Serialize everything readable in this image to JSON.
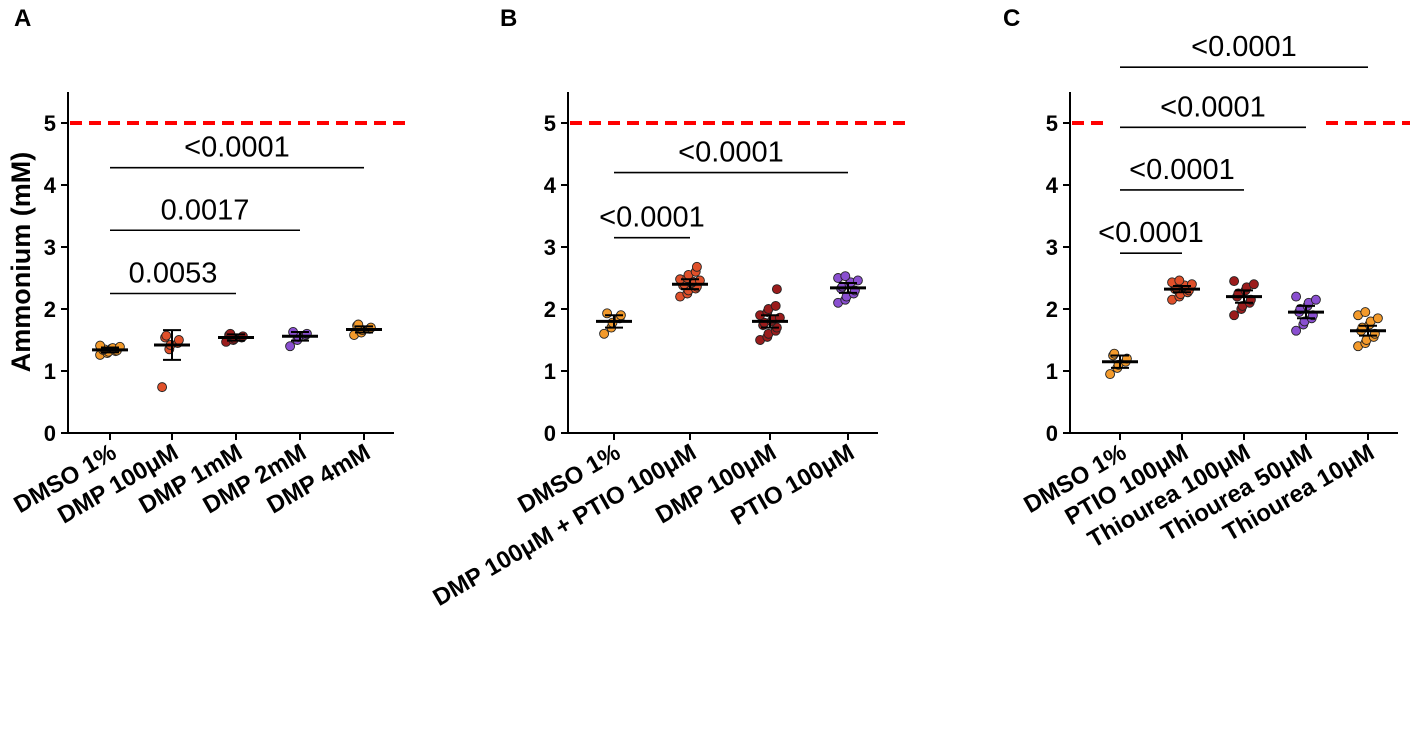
{
  "figure_labels": [
    "A",
    "B",
    "C"
  ],
  "colors": {
    "axis": "#000000",
    "reference_line": "#ff0000",
    "group_colors": {
      "orange": "#f39a2b",
      "red_orange": "#e0502a",
      "dark_red": "#9b1c1c",
      "purple": "#8a4fd0"
    }
  },
  "chart_data": [
    {
      "panel": "A",
      "type": "scatter",
      "ylabel": "Ammonium (mM)",
      "xlabel": "",
      "ylim": [
        0,
        5.5
      ],
      "yticks": [
        "0",
        "1",
        "2",
        "3",
        "4",
        "5"
      ],
      "reference_line": 5,
      "categories": [
        "DMSO 1%",
        "DMP 100μM",
        "DMP 1mM",
        "DMP 2mM",
        "DMP 4mM"
      ],
      "series": [
        {
          "name": "DMSO 1%",
          "color": "orange",
          "mean": 1.34,
          "error": 0.04,
          "points": [
            1.26,
            1.29,
            1.31,
            1.32,
            1.33,
            1.34,
            1.35,
            1.36,
            1.37,
            1.39,
            1.41
          ]
        },
        {
          "name": "DMP 100μM",
          "color": "red_orange",
          "mean": 1.42,
          "error": 0.24,
          "points": [
            0.74,
            1.35,
            1.42,
            1.45,
            1.5,
            1.54,
            1.57
          ]
        },
        {
          "name": "DMP 1mM",
          "color": "dark_red",
          "mean": 1.54,
          "error": 0.05,
          "points": [
            1.47,
            1.5,
            1.52,
            1.54,
            1.56,
            1.58,
            1.6
          ]
        },
        {
          "name": "DMP 2mM",
          "color": "purple",
          "mean": 1.56,
          "error": 0.07,
          "points": [
            1.4,
            1.5,
            1.55,
            1.58,
            1.6,
            1.63
          ]
        },
        {
          "name": "DMP 4mM",
          "color": "orange",
          "mean": 1.67,
          "error": 0.05,
          "points": [
            1.58,
            1.62,
            1.66,
            1.68,
            1.7,
            1.73,
            1.75
          ]
        }
      ],
      "comparisons": [
        {
          "from": 0,
          "to": 4,
          "y": 4.28,
          "label": "<0.0001"
        },
        {
          "from": 0,
          "to": 3,
          "y": 3.27,
          "label": "0.0017"
        },
        {
          "from": 0,
          "to": 2,
          "y": 2.25,
          "label": "0.0053"
        }
      ]
    },
    {
      "panel": "B",
      "type": "scatter",
      "ylabel": "",
      "xlabel": "",
      "ylim": [
        0,
        5.5
      ],
      "yticks": [
        "0",
        "1",
        "2",
        "3",
        "4",
        "5"
      ],
      "reference_line": 5,
      "categories": [
        "DMSO 1%",
        "DMP 100μM + PTIO 100μM",
        "DMP 100μM",
        "PTIO 100μM"
      ],
      "series": [
        {
          "name": "DMSO 1%",
          "color": "orange",
          "mean": 1.8,
          "error": 0.1,
          "points": [
            1.6,
            1.7,
            1.78,
            1.85,
            1.9,
            1.93
          ]
        },
        {
          "name": "DMP 100μM + PTIO 100μM",
          "color": "red_orange",
          "mean": 2.4,
          "error": 0.08,
          "points": [
            2.2,
            2.25,
            2.3,
            2.33,
            2.36,
            2.38,
            2.4,
            2.42,
            2.44,
            2.46,
            2.48,
            2.5,
            2.55,
            2.6,
            2.68
          ]
        },
        {
          "name": "DMP 100μM",
          "color": "dark_red",
          "mean": 1.8,
          "error": 0.1,
          "points": [
            1.5,
            1.55,
            1.6,
            1.65,
            1.7,
            1.74,
            1.78,
            1.8,
            1.83,
            1.86,
            1.9,
            1.95,
            2.0,
            2.05,
            2.32
          ]
        },
        {
          "name": "PTIO 100μM",
          "color": "purple",
          "mean": 2.34,
          "error": 0.08,
          "points": [
            2.1,
            2.15,
            2.2,
            2.25,
            2.3,
            2.33,
            2.36,
            2.4,
            2.43,
            2.46,
            2.5,
            2.53
          ]
        }
      ],
      "comparisons": [
        {
          "from": 0,
          "to": 3,
          "y": 4.2,
          "label": "<0.0001"
        },
        {
          "from": 0,
          "to": 1,
          "y": 3.15,
          "label": "<0.0001"
        }
      ]
    },
    {
      "panel": "C",
      "type": "scatter",
      "ylabel": "",
      "xlabel": "",
      "ylim": [
        0,
        5.5
      ],
      "yticks": [
        "0",
        "1",
        "2",
        "3",
        "4",
        "5"
      ],
      "reference_line": 5,
      "categories": [
        "DMSO 1%",
        "PTIO 100μM",
        "Thiourea 100μM",
        "Thiourea 50μM",
        "Thiourea 10μM"
      ],
      "series": [
        {
          "name": "DMSO 1%",
          "color": "orange",
          "mean": 1.15,
          "error": 0.1,
          "points": [
            0.95,
            1.05,
            1.1,
            1.15,
            1.2,
            1.25,
            1.28
          ]
        },
        {
          "name": "PTIO 100μM",
          "color": "red_orange",
          "mean": 2.32,
          "error": 0.05,
          "points": [
            2.15,
            2.2,
            2.24,
            2.27,
            2.3,
            2.32,
            2.34,
            2.36,
            2.38,
            2.4,
            2.43,
            2.46
          ]
        },
        {
          "name": "Thiourea 100μM",
          "color": "dark_red",
          "mean": 2.2,
          "error": 0.1,
          "points": [
            1.9,
            2.0,
            2.05,
            2.1,
            2.15,
            2.2,
            2.25,
            2.3,
            2.35,
            2.4,
            2.45
          ]
        },
        {
          "name": "Thiourea 50μM",
          "color": "purple",
          "mean": 1.95,
          "error": 0.1,
          "points": [
            1.65,
            1.75,
            1.8,
            1.85,
            1.9,
            1.95,
            2.0,
            2.05,
            2.1,
            2.15,
            2.2
          ]
        },
        {
          "name": "Thiourea 10μM",
          "color": "orange",
          "mean": 1.65,
          "error": 0.08,
          "points": [
            1.4,
            1.45,
            1.5,
            1.55,
            1.6,
            1.65,
            1.7,
            1.75,
            1.8,
            1.85,
            1.9,
            1.95
          ]
        }
      ],
      "comparisons": [
        {
          "from": 0,
          "to": 4,
          "y": 5.9,
          "label": "<0.0001"
        },
        {
          "from": 0,
          "to": 3,
          "y": 4.93,
          "label": "<0.0001"
        },
        {
          "from": 0,
          "to": 2,
          "y": 3.92,
          "label": "<0.0001"
        },
        {
          "from": 0,
          "to": 1,
          "y": 2.9,
          "label": "<0.0001"
        }
      ]
    }
  ]
}
